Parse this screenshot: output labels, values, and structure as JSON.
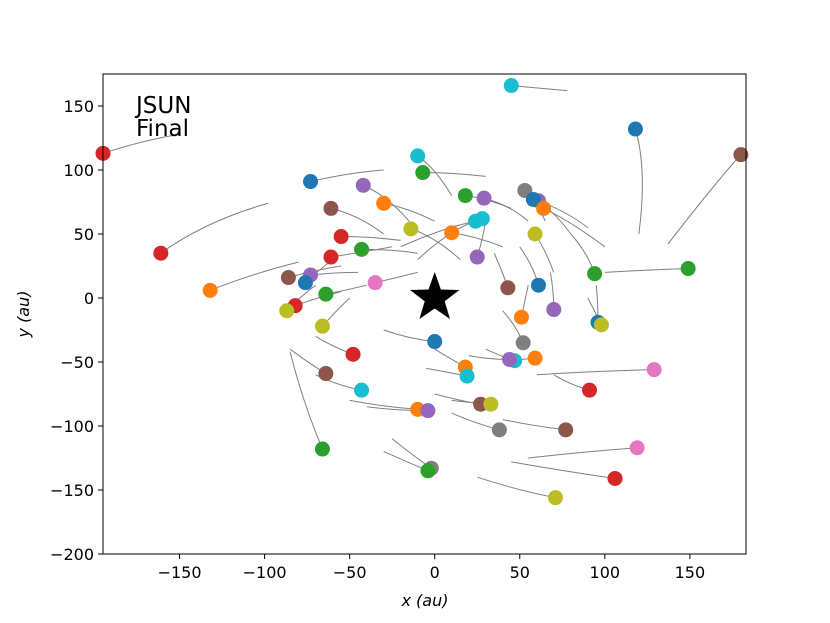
{
  "chart_data": {
    "type": "scatter",
    "title": "",
    "xlabel": "x (au)",
    "ylabel": "y (au)",
    "xlim": [
      -195,
      183
    ],
    "ylim": [
      -200,
      175
    ],
    "xticks": [
      -150,
      -100,
      -50,
      0,
      50,
      100,
      150
    ],
    "yticks": [
      -200,
      -150,
      -100,
      -50,
      0,
      50,
      100,
      150
    ],
    "xtick_labels": [
      "−150",
      "−100",
      "−50",
      "0",
      "50",
      "100",
      "150"
    ],
    "ytick_labels": [
      "−200",
      "−150",
      "−100",
      "−50",
      "0",
      "50",
      "100",
      "150"
    ],
    "grid": false,
    "annotation": [
      "JSUN",
      "Final"
    ],
    "star": {
      "x": 0,
      "y": 0,
      "color": "#000000"
    },
    "trail_color": "#808080",
    "colors": [
      "#1f77b4",
      "#ff7f0e",
      "#2ca02c",
      "#d62728",
      "#9467bd",
      "#8c564b",
      "#e377c2",
      "#7f7f7f",
      "#bcbd22",
      "#17becf"
    ],
    "points": [
      {
        "x": 45,
        "y": 166,
        "c": 9,
        "t": [
          [
            78,
            162
          ],
          [
            60,
            164
          ]
        ]
      },
      {
        "x": 118,
        "y": 132,
        "c": 0,
        "t": [
          [
            120,
            50
          ],
          [
            125,
            100
          ]
        ]
      },
      {
        "x": 180,
        "y": 112,
        "c": 5,
        "t": [
          [
            137,
            42
          ],
          [
            165,
            90
          ]
        ]
      },
      {
        "x": -195,
        "y": 113,
        "c": 3,
        "t": [
          [
            -150,
            128
          ],
          [
            -175,
            122
          ]
        ]
      },
      {
        "x": -10,
        "y": 111,
        "c": 9,
        "t": [
          [
            10,
            80
          ],
          [
            0,
            102
          ]
        ]
      },
      {
        "x": -7,
        "y": 98,
        "c": 2,
        "t": [
          [
            30,
            95
          ],
          [
            10,
            98
          ]
        ]
      },
      {
        "x": -73,
        "y": 91,
        "c": 0,
        "t": [
          [
            -30,
            100
          ],
          [
            -50,
            98
          ]
        ]
      },
      {
        "x": -42,
        "y": 88,
        "c": 4,
        "t": [
          [
            -15,
            60
          ],
          [
            -28,
            80
          ]
        ]
      },
      {
        "x": 18,
        "y": 80,
        "c": 2,
        "t": [
          [
            45,
            70
          ],
          [
            30,
            78
          ]
        ]
      },
      {
        "x": 29,
        "y": 78,
        "c": 4,
        "t": [
          [
            55,
            60
          ],
          [
            45,
            72
          ]
        ]
      },
      {
        "x": 53,
        "y": 84,
        "c": 7,
        "t": [
          [
            65,
            60
          ],
          [
            60,
            75
          ]
        ]
      },
      {
        "x": 61,
        "y": 76,
        "c": 4,
        "t": [
          [
            80,
            50
          ],
          [
            72,
            65
          ]
        ]
      },
      {
        "x": 58,
        "y": 77,
        "c": 0,
        "t": [
          [
            90,
            55
          ],
          [
            75,
            70
          ]
        ]
      },
      {
        "x": 64,
        "y": 70,
        "c": 1,
        "t": [
          [
            100,
            40
          ],
          [
            80,
            60
          ]
        ]
      },
      {
        "x": 28,
        "y": 62,
        "c": 9,
        "t": [
          [
            -10,
            30
          ],
          [
            10,
            55
          ]
        ]
      },
      {
        "x": 24,
        "y": 60,
        "c": 9,
        "t": [
          [
            -20,
            40
          ],
          [
            5,
            55
          ]
        ]
      },
      {
        "x": -30,
        "y": 74,
        "c": 1,
        "t": [
          [
            0,
            60
          ],
          [
            -15,
            70
          ]
        ]
      },
      {
        "x": -61,
        "y": 70,
        "c": 5,
        "t": [
          [
            -30,
            50
          ],
          [
            -45,
            65
          ]
        ]
      },
      {
        "x": -14,
        "y": 54,
        "c": 8,
        "t": [
          [
            15,
            30
          ],
          [
            0,
            48
          ]
        ]
      },
      {
        "x": 10,
        "y": 51,
        "c": 1,
        "t": [
          [
            40,
            40
          ],
          [
            25,
            48
          ]
        ]
      },
      {
        "x": 59,
        "y": 50,
        "c": 8,
        "t": [
          [
            70,
            20
          ],
          [
            65,
            38
          ]
        ]
      },
      {
        "x": -55,
        "y": 48,
        "c": 3,
        "t": [
          [
            -20,
            45
          ],
          [
            -38,
            48
          ]
        ]
      },
      {
        "x": -43,
        "y": 38,
        "c": 2,
        "t": [
          [
            -10,
            35
          ],
          [
            -25,
            38
          ]
        ]
      },
      {
        "x": -161,
        "y": 35,
        "c": 3,
        "t": [
          [
            -98,
            74
          ],
          [
            -135,
            60
          ]
        ]
      },
      {
        "x": -61,
        "y": 32,
        "c": 3,
        "t": [
          [
            -25,
            40
          ],
          [
            -42,
            36
          ]
        ]
      },
      {
        "x": 25,
        "y": 32,
        "c": 4,
        "t": [
          [
            30,
            60
          ],
          [
            28,
            45
          ]
        ]
      },
      {
        "x": -132,
        "y": 6,
        "c": 1,
        "t": [
          [
            -80,
            28
          ],
          [
            -105,
            20
          ]
        ]
      },
      {
        "x": -86,
        "y": 16,
        "c": 5,
        "t": [
          [
            -55,
            25
          ],
          [
            -70,
            22
          ]
        ]
      },
      {
        "x": -73,
        "y": 18,
        "c": 4,
        "t": [
          [
            -45,
            20
          ],
          [
            -58,
            20
          ]
        ]
      },
      {
        "x": -76,
        "y": 12,
        "c": 0,
        "t": [
          [
            -60,
            30
          ],
          [
            -68,
            22
          ]
        ]
      },
      {
        "x": -35,
        "y": 12,
        "c": 6,
        "t": [
          [
            -10,
            20
          ],
          [
            -22,
            16
          ]
        ]
      },
      {
        "x": -64,
        "y": 3,
        "c": 2,
        "t": [
          [
            -40,
            10
          ],
          [
            -52,
            6
          ]
        ]
      },
      {
        "x": 43,
        "y": 8,
        "c": 5,
        "t": [
          [
            35,
            35
          ],
          [
            40,
            20
          ]
        ]
      },
      {
        "x": 61,
        "y": 10,
        "c": 0,
        "t": [
          [
            50,
            40
          ],
          [
            58,
            25
          ]
        ]
      },
      {
        "x": 94,
        "y": 19,
        "c": 2,
        "t": [
          [
            80,
            50
          ],
          [
            90,
            35
          ]
        ]
      },
      {
        "x": 149,
        "y": 23,
        "c": 2,
        "t": [
          [
            100,
            20
          ],
          [
            125,
            22
          ]
        ]
      },
      {
        "x": -82,
        "y": -6,
        "c": 3,
        "t": [
          [
            -55,
            5
          ],
          [
            -70,
            0
          ]
        ]
      },
      {
        "x": -87,
        "y": -10,
        "c": 8,
        "t": [
          [
            -70,
            10
          ],
          [
            -80,
            0
          ]
        ]
      },
      {
        "x": -66,
        "y": -22,
        "c": 8,
        "t": [
          [
            -50,
            0
          ],
          [
            -58,
            -10
          ]
        ]
      },
      {
        "x": 51,
        "y": -15,
        "c": 1,
        "t": [
          [
            55,
            10
          ],
          [
            53,
            -2
          ]
        ]
      },
      {
        "x": 70,
        "y": -9,
        "c": 4,
        "t": [
          [
            68,
            20
          ],
          [
            70,
            5
          ]
        ]
      },
      {
        "x": 96,
        "y": -19,
        "c": 0,
        "t": [
          [
            95,
            10
          ],
          [
            96,
            -5
          ]
        ]
      },
      {
        "x": 98,
        "y": -21,
        "c": 8,
        "t": [
          [
            90,
            0
          ],
          [
            94,
            -10
          ]
        ]
      },
      {
        "x": 0,
        "y": -34,
        "c": 0,
        "t": [
          [
            -30,
            -25
          ],
          [
            -15,
            -32
          ]
        ]
      },
      {
        "x": 52,
        "y": -35,
        "c": 7,
        "t": [
          [
            40,
            -10
          ],
          [
            48,
            -22
          ]
        ]
      },
      {
        "x": -48,
        "y": -44,
        "c": 3,
        "t": [
          [
            -70,
            -30
          ],
          [
            -60,
            -38
          ]
        ]
      },
      {
        "x": 59,
        "y": -47,
        "c": 1,
        "t": [
          [
            40,
            -50
          ],
          [
            50,
            -48
          ]
        ]
      },
      {
        "x": 47,
        "y": -49,
        "c": 9,
        "t": [
          [
            30,
            -40
          ],
          [
            40,
            -46
          ]
        ]
      },
      {
        "x": 44,
        "y": -48,
        "c": 4,
        "t": [
          [
            20,
            -45
          ],
          [
            32,
            -48
          ]
        ]
      },
      {
        "x": 18,
        "y": -54,
        "c": 1,
        "t": [
          [
            0,
            -40
          ],
          [
            10,
            -48
          ]
        ]
      },
      {
        "x": 19,
        "y": -61,
        "c": 9,
        "t": [
          [
            -5,
            -55
          ],
          [
            8,
            -58
          ]
        ]
      },
      {
        "x": -64,
        "y": -59,
        "c": 5,
        "t": [
          [
            -85,
            -40
          ],
          [
            -75,
            -50
          ]
        ]
      },
      {
        "x": 129,
        "y": -56,
        "c": 6,
        "t": [
          [
            60,
            -60
          ],
          [
            95,
            -57
          ]
        ]
      },
      {
        "x": -43,
        "y": -72,
        "c": 9,
        "t": [
          [
            -70,
            -60
          ],
          [
            -58,
            -68
          ]
        ]
      },
      {
        "x": 91,
        "y": -72,
        "c": 3,
        "t": [
          [
            70,
            -60
          ],
          [
            80,
            -68
          ]
        ]
      },
      {
        "x": -10,
        "y": -87,
        "c": 1,
        "t": [
          [
            -50,
            -80
          ],
          [
            -30,
            -85
          ]
        ]
      },
      {
        "x": -4,
        "y": -88,
        "c": 4,
        "t": [
          [
            -40,
            -85
          ],
          [
            -22,
            -88
          ]
        ]
      },
      {
        "x": 27,
        "y": -83,
        "c": 5,
        "t": [
          [
            0,
            -75
          ],
          [
            14,
            -80
          ]
        ]
      },
      {
        "x": 33,
        "y": -83,
        "c": 8,
        "t": [
          [
            10,
            -80
          ],
          [
            22,
            -82
          ]
        ]
      },
      {
        "x": 38,
        "y": -103,
        "c": 7,
        "t": [
          [
            10,
            -90
          ],
          [
            24,
            -98
          ]
        ]
      },
      {
        "x": 77,
        "y": -103,
        "c": 5,
        "t": [
          [
            40,
            -95
          ],
          [
            58,
            -100
          ]
        ]
      },
      {
        "x": -66,
        "y": -118,
        "c": 2,
        "t": [
          [
            -85,
            -42
          ],
          [
            -78,
            -80
          ]
        ]
      },
      {
        "x": 119,
        "y": -117,
        "c": 6,
        "t": [
          [
            55,
            -125
          ],
          [
            88,
            -120
          ]
        ]
      },
      {
        "x": -2,
        "y": -133,
        "c": 7,
        "t": [
          [
            -25,
            -110
          ],
          [
            -14,
            -122
          ]
        ]
      },
      {
        "x": -4,
        "y": -135,
        "c": 2,
        "t": [
          [
            -30,
            -120
          ],
          [
            -16,
            -128
          ]
        ]
      },
      {
        "x": 106,
        "y": -141,
        "c": 3,
        "t": [
          [
            45,
            -128
          ],
          [
            75,
            -135
          ]
        ]
      },
      {
        "x": 71,
        "y": -156,
        "c": 8,
        "t": [
          [
            25,
            -140
          ],
          [
            48,
            -150
          ]
        ]
      }
    ]
  }
}
